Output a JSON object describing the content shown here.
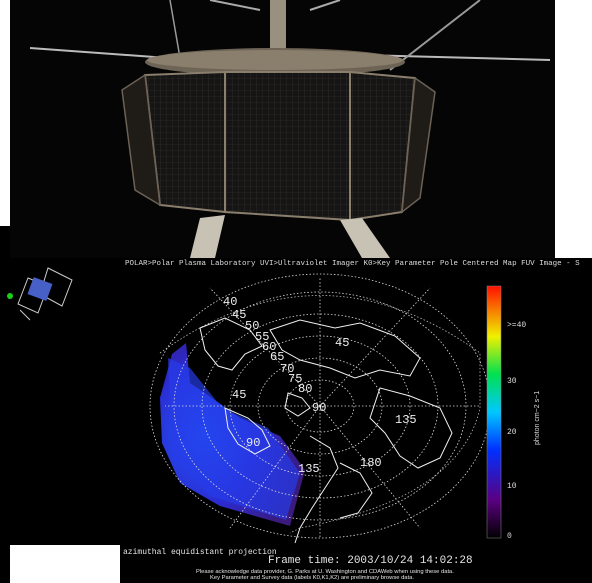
{
  "uvi": {
    "header": "POLAR>Polar Plasma Laboratory  UVI>Ultraviolet Imager  K0>Key Parameter Pole Centered Map FUV Image - S",
    "projection": "azimuthal equidistant projection",
    "frame_time": "Frame time: 2003/10/24 14:02:28",
    "ack_line1": "Please acknowledge data provider, G. Parks at U. Washington and CDAWeb when using these data.",
    "ack_line2": "Key Parameter and Survey data (labels K0,K1,K2) are preliminary browse data.",
    "colorbar": {
      "title": "photon cm−2 s−1",
      "ticks": [
        ">=40",
        "30",
        "20",
        "10",
        "0"
      ]
    },
    "map_labels": [
      "40",
      "45",
      "50",
      "55",
      "60",
      "65",
      "70",
      "75",
      "80",
      "45",
      "45",
      "90",
      "135",
      "180",
      "135",
      "90"
    ]
  },
  "colors": {
    "background": "#000000",
    "aurora": "#2030e0"
  }
}
